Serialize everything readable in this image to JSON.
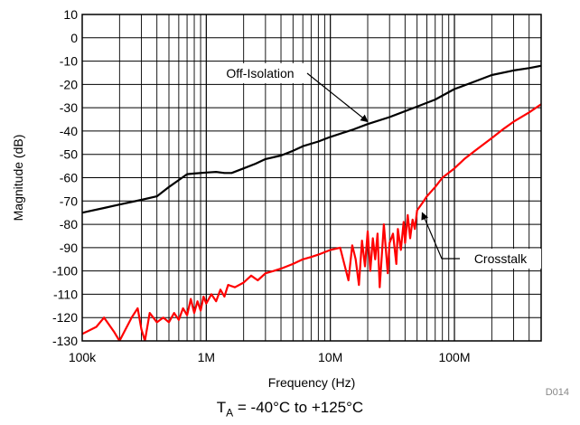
{
  "chart_data": {
    "type": "line",
    "xlabel": "Frequency (Hz)",
    "ylabel": "Magnitude (dB)",
    "x_scale": "log",
    "xlim": [
      100000,
      500000000
    ],
    "ylim": [
      -130,
      10
    ],
    "x_ticks": [
      {
        "value": 100000,
        "label": "100k"
      },
      {
        "value": 1000000,
        "label": "1M"
      },
      {
        "value": 10000000,
        "label": "10M"
      },
      {
        "value": 100000000,
        "label": "100M"
      }
    ],
    "y_ticks": [
      10,
      0,
      -10,
      -20,
      -30,
      -40,
      -50,
      -60,
      -70,
      -80,
      -90,
      -100,
      -110,
      -120,
      -130
    ],
    "grid": true,
    "series": [
      {
        "name": "Off-Isolation",
        "color": "#000000",
        "x": [
          100000,
          150000,
          200000,
          300000,
          400000,
          500000,
          600000,
          700000,
          800000,
          1000000,
          1200000,
          1400000,
          1600000,
          2000000,
          2500000,
          3000000,
          4000000,
          5000000,
          6000000,
          8000000,
          10000000,
          15000000,
          20000000,
          30000000,
          50000000,
          70000000,
          100000000,
          150000000,
          200000000,
          300000000,
          400000000,
          500000000
        ],
        "y": [
          -75,
          -73,
          -71.5,
          -69.5,
          -68,
          -64,
          -61,
          -58.5,
          -58.2,
          -57.8,
          -57.5,
          -58,
          -58,
          -56,
          -54,
          -52,
          -50.5,
          -48.5,
          -46.5,
          -44.5,
          -42.5,
          -39.5,
          -37,
          -34,
          -29.5,
          -26.5,
          -22,
          -18.5,
          -16,
          -14,
          -13,
          -12
        ]
      },
      {
        "name": "Crosstalk",
        "color": "#ff0000",
        "x": [
          100000,
          130000,
          150000,
          180000,
          200000,
          250000,
          280000,
          300000,
          320000,
          350000,
          400000,
          450000,
          500000,
          550000,
          600000,
          650000,
          700000,
          750000,
          800000,
          850000,
          900000,
          950000,
          1000000,
          1100000,
          1200000,
          1300000,
          1400000,
          1500000,
          1700000,
          2000000,
          2300000,
          2600000,
          3000000,
          3500000,
          4000000,
          5000000,
          6000000,
          7000000,
          8000000,
          10000000,
          12000000,
          14000000,
          15000000,
          16000000,
          17000000,
          18000000,
          19000000,
          20000000,
          21000000,
          22000000,
          23000000,
          24000000,
          25000000,
          27000000,
          29000000,
          30000000,
          32000000,
          34000000,
          35000000,
          37000000,
          39000000,
          40000000,
          42000000,
          44000000,
          46000000,
          48000000,
          50000000,
          55000000,
          60000000,
          70000000,
          80000000,
          100000000,
          120000000,
          150000000,
          200000000,
          250000000,
          300000000,
          400000000,
          500000000
        ],
        "y": [
          -127,
          -124,
          -120,
          -126,
          -130,
          -120,
          -116,
          -125,
          -130,
          -118,
          -122,
          -120,
          -122,
          -118,
          -121,
          -116,
          -119,
          -112,
          -118,
          -113,
          -117,
          -111,
          -114,
          -110,
          -113,
          -108,
          -111,
          -106,
          -107,
          -105,
          -102,
          -104,
          -101,
          -100,
          -99,
          -97,
          -95,
          -94,
          -93,
          -91,
          -90,
          -104,
          -89,
          -95,
          -106,
          -87,
          -98,
          -83,
          -100,
          -86,
          -95,
          -84,
          -107,
          -80,
          -101,
          -88,
          -84,
          -97,
          -82,
          -91,
          -79,
          -88,
          -76,
          -86,
          -78,
          -82,
          -74,
          -71,
          -68,
          -64,
          -60,
          -56,
          -52,
          -48,
          -43,
          -39,
          -36,
          -32,
          -28.5
        ]
      }
    ],
    "annotations": [
      {
        "text": "Off-Isolation",
        "target_x": 20000000,
        "target_y": -36
      },
      {
        "text": "Crosstalk",
        "target_x": 55000000,
        "target_y": -75
      }
    ],
    "figure_id": "D014",
    "caption": {
      "prefix": "T",
      "sub": "A",
      "suffix": " = -40°C to +125°C"
    }
  }
}
